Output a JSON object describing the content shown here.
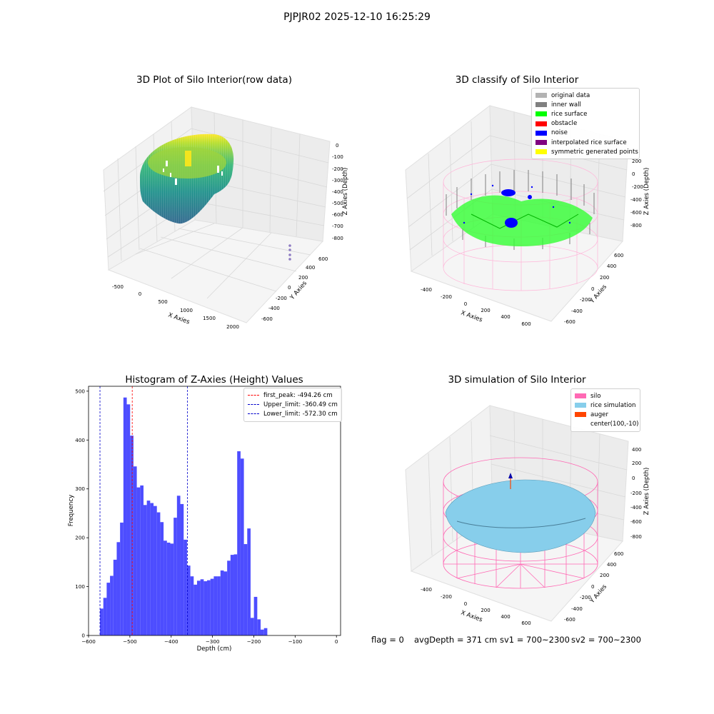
{
  "suptitle": "PJPJR02 2025-12-10 16:25:29",
  "colors": {
    "hist_bar": "#4d4dff",
    "first_peak": "#ff0000",
    "limits": "#0000cc",
    "pane": "#f2f2f2",
    "silo_mesh": "#ff69b4",
    "rice_sim": "#87ceeb",
    "auger": "#ff4500",
    "original_data": "#b3b3b3",
    "inner_wall": "#808080",
    "rice_surface": "#00ff00",
    "obstacle": "#ff0000",
    "noise": "#0000ff",
    "interpolated": "#800080",
    "symmetric": "#ffff00"
  },
  "panel1": {
    "title": "3D Plot of Silo Interior(row data)",
    "xlabel": "X Axies",
    "ylabel": "Y Axies",
    "zlabel": "Z Axies (Depth)",
    "xticks": [
      "-500",
      "0",
      "500",
      "1000",
      "1500",
      "2000"
    ],
    "yticks": [
      "-600",
      "-400",
      "-200",
      "0",
      "200",
      "400",
      "600"
    ],
    "zticks": [
      "0",
      "-100",
      "-200",
      "-300",
      "-400",
      "-500",
      "-600",
      "-700",
      "-800"
    ]
  },
  "panel2": {
    "title": "3D classify of Silo Interior",
    "xlabel": "X Axies",
    "ylabel": "Y Axies",
    "zlabel": "Z Axies (Depth)",
    "xticks": [
      "-400",
      "-200",
      "0",
      "200",
      "400",
      "600"
    ],
    "yticks": [
      "-600",
      "-400",
      "-200",
      "0",
      "200",
      "400",
      "600"
    ],
    "zticks": [
      "200",
      "0",
      "-200",
      "-400",
      "-600",
      "-800"
    ],
    "legend": [
      {
        "label": "original data",
        "color": "#b3b3b3"
      },
      {
        "label": "inner wall",
        "color": "#808080"
      },
      {
        "label": "rice surface",
        "color": "#00ff00"
      },
      {
        "label": "obstacle",
        "color": "#ff0000"
      },
      {
        "label": "noise",
        "color": "#0000ff"
      },
      {
        "label": "interpolated rice surface",
        "color": "#800080"
      },
      {
        "label": "symmetric generated points",
        "color": "#ffff00"
      }
    ]
  },
  "panel4": {
    "title": "3D simulation of Silo Interior",
    "xlabel": "X Axies",
    "ylabel": "Y Axies",
    "zlabel": "Z Axies (Depth)",
    "xticks": [
      "-400",
      "-200",
      "0",
      "200",
      "400",
      "600"
    ],
    "yticks": [
      "-600",
      "-400",
      "-200",
      "0",
      "200",
      "400",
      "600"
    ],
    "zticks": [
      "400",
      "200",
      "0",
      "-200",
      "-400",
      "-600",
      "-800"
    ],
    "legend": [
      {
        "label": "silo",
        "color": "#ff69b4"
      },
      {
        "label": "rice simulation",
        "color": "#87ceeb"
      },
      {
        "label": "auger",
        "color": "#ff4500"
      },
      {
        "label": "center(100,-10)",
        "color": ""
      }
    ]
  },
  "footer": {
    "flag": "flag = 0",
    "avg": "avgDepth = 371 cm",
    "sv1": "sv1 = 700~2300",
    "sv2": "sv2 = 700~2300"
  },
  "chart_data": {
    "type": "bar",
    "title": "Histogram of Z-Axies (Height) Values",
    "xlabel": "Depth (cm)",
    "ylabel": "Frequency",
    "xlim": [
      -600,
      10
    ],
    "ylim": [
      0,
      510
    ],
    "xticks": [
      -600,
      -500,
      -400,
      -300,
      -200,
      -100,
      0
    ],
    "yticks": [
      0,
      100,
      200,
      300,
      400,
      500
    ],
    "bin_start": -572.3,
    "bin_width": 8.1,
    "values": [
      55,
      77,
      108,
      122,
      155,
      191,
      231,
      487,
      473,
      409,
      346,
      303,
      307,
      267,
      276,
      271,
      265,
      252,
      232,
      194,
      190,
      188,
      241,
      286,
      269,
      196,
      143,
      121,
      104,
      112,
      115,
      111,
      113,
      116,
      121,
      121,
      133,
      131,
      153,
      165,
      166,
      377,
      362,
      187,
      219,
      36,
      79,
      33,
      12,
      15
    ],
    "vlines": [
      {
        "x": -494.26,
        "color": "#ff0000",
        "label": "first_peak: -494.26 cm"
      },
      {
        "x": -360.49,
        "color": "#0000cc",
        "label": "Upper_limit: -360.49 cm"
      },
      {
        "x": -572.3,
        "color": "#0000cc",
        "label": "Lower_limit: -572.30 cm"
      }
    ],
    "legend_position": "upper right",
    "grid": false
  }
}
